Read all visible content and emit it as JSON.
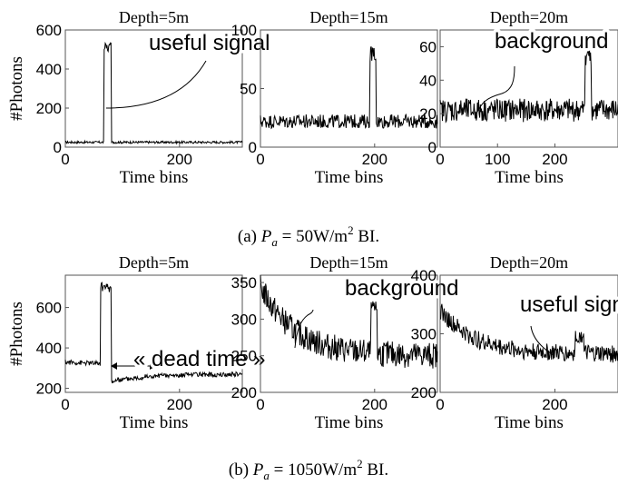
{
  "figure": {
    "caption_a": {
      "prefix": "(a) ",
      "var": "P",
      "sub": "a",
      "value": " = 50W/m",
      "sup": "2",
      "suffix": " BI."
    },
    "caption_b": {
      "prefix": "(b) ",
      "var": "P",
      "sub": "a",
      "value": " = 1050W/m",
      "sup": "2",
      "suffix": " BI."
    }
  },
  "chart_data": [
    {
      "id": "a1",
      "type": "line",
      "title": "Depth=5m",
      "xlabel": "Time bins",
      "ylabel": "#Photons",
      "xlim": [
        0,
        310
      ],
      "ylim": [
        0,
        600
      ],
      "xticks": [
        0,
        200
      ],
      "yticks": [
        0,
        200,
        400,
        600
      ],
      "baseline": 25,
      "noise": 6,
      "peak": {
        "start": 68,
        "end": 80,
        "value": 510,
        "noise": 25
      },
      "after": {
        "tau": 0
      },
      "annotation": {
        "text": "useful signal",
        "box_x": 92,
        "box_y": 22
      }
    },
    {
      "id": "a2",
      "type": "line",
      "title": "Depth=15m",
      "xlabel": "Time bins",
      "ylabel": "",
      "xlim": [
        0,
        310
      ],
      "ylim": [
        0,
        100
      ],
      "xticks": [
        0,
        200
      ],
      "yticks": [
        0,
        50,
        100
      ],
      "baseline": 22,
      "noise": 6,
      "peak": {
        "start": 192,
        "end": 202,
        "value": 80,
        "noise": 7
      },
      "after": {
        "tau": 0
      }
    },
    {
      "id": "a3",
      "type": "line",
      "title": "Depth=20m",
      "xlabel": "Time bins",
      "ylabel": "",
      "xlim": [
        0,
        310
      ],
      "ylim": [
        0,
        70
      ],
      "xticks": [
        0,
        100,
        200
      ],
      "yticks": [
        0,
        20,
        40,
        60
      ],
      "baseline": 22,
      "noise": 7,
      "peak": {
        "start": 253,
        "end": 263,
        "value": 56,
        "noise": 7
      },
      "after": {
        "tau": 0
      },
      "annotation": {
        "text": "background",
        "box_x": 60,
        "box_y": 20
      }
    },
    {
      "id": "b1",
      "type": "line",
      "title": "Depth=5m",
      "xlabel": "Time bins",
      "ylabel": "#Photons",
      "xlim": [
        0,
        310
      ],
      "ylim": [
        180,
        760
      ],
      "xticks": [
        0,
        200
      ],
      "yticks": [
        200,
        400,
        600
      ],
      "baseline": 290,
      "noise": 12,
      "start_level": 330,
      "peak": {
        "start": 62,
        "end": 80,
        "value": 700,
        "noise": 25
      },
      "after": {
        "tau": 60,
        "dip": 235,
        "recover": 270
      },
      "annotation": {
        "text": "« dead time »",
        "box_x": 75,
        "box_y": 205
      }
    },
    {
      "id": "b2",
      "type": "line",
      "title": "Depth=15m",
      "xlabel": "Time bins",
      "ylabel": "",
      "xlim": [
        0,
        310
      ],
      "ylim": [
        200,
        360
      ],
      "xticks": [
        0,
        200
      ],
      "yticks": [
        200,
        250,
        300,
        350
      ],
      "baseline": 250,
      "noise": 18,
      "start_level": 345,
      "decay": 60,
      "peak": {
        "start": 194,
        "end": 204,
        "value": 315,
        "noise": 10
      },
      "after": {
        "tau": 0
      },
      "annotation": {
        "text": "background",
        "box_x": 93,
        "box_y": 22
      }
    },
    {
      "id": "b3",
      "type": "line",
      "title": "Depth=20m",
      "xlabel": "Time bins",
      "ylabel": "",
      "xlim": [
        0,
        310
      ],
      "ylim": [
        200,
        400
      ],
      "xticks": [
        0,
        200
      ],
      "yticks": [
        200,
        300,
        400
      ],
      "baseline": 265,
      "noise": 15,
      "start_level": 340,
      "decay": 60,
      "peak": {
        "start": 236,
        "end": 250,
        "value": 295,
        "noise": 10
      },
      "after": {
        "tau": 0
      },
      "annotation": {
        "text": "useful signal",
        "box_x": 88,
        "box_y": 40
      }
    }
  ]
}
